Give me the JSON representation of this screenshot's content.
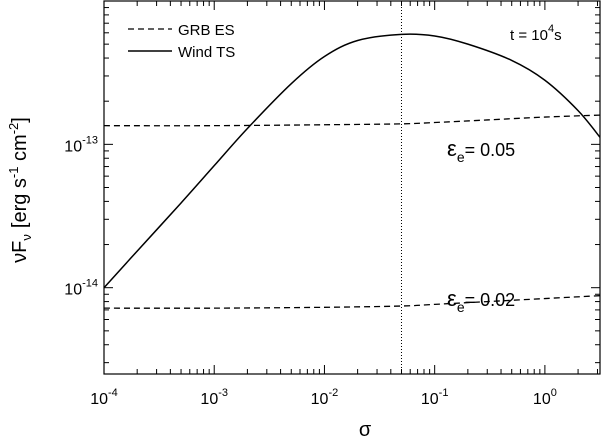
{
  "chart_data": {
    "type": "line",
    "scale": {
      "x": "log",
      "y": "log"
    },
    "xlabel": "σ",
    "ylabel": {
      "main": "νF",
      "sub": "ν",
      "units": "[erg s",
      "units_exp1": "-1",
      "units_mid": " cm",
      "units_exp2": "-2",
      "units_end": "]"
    },
    "xlim": [
      0.0001,
      3.162
    ],
    "ylim": [
      2.5e-15,
      1e-12
    ],
    "x_ticks": [
      {
        "base": "10",
        "exp": "-4",
        "value": 0.0001
      },
      {
        "base": "10",
        "exp": "-3",
        "value": 0.001
      },
      {
        "base": "10",
        "exp": "-2",
        "value": 0.01
      },
      {
        "base": "10",
        "exp": "-1",
        "value": 0.1
      },
      {
        "base": "10",
        "exp": "0",
        "value": 1
      }
    ],
    "y_ticks": [
      {
        "base": "10",
        "exp": "-14",
        "value": 1e-14
      },
      {
        "base": "10",
        "exp": "-13",
        "value": 1e-13
      }
    ],
    "vline": {
      "x": 0.05,
      "style": "dotted"
    },
    "legend": {
      "placement": "top-left",
      "entries": [
        {
          "label": "GRB ES",
          "style": "dashed"
        },
        {
          "label": "Wind TS",
          "style": "solid"
        }
      ]
    },
    "annotations": {
      "time": {
        "text": "t = 10",
        "exp": "4",
        "suffix": "s"
      },
      "eps_high": {
        "sym": "ε",
        "sub": "e",
        "text": "= 0.05"
      },
      "eps_low": {
        "sym": "ε",
        "sub": "e",
        "text": "= 0.02"
      }
    },
    "series": [
      {
        "name": "Wind TS",
        "style": "solid",
        "x": [
          0.0001,
          0.0002,
          0.0005,
          0.001,
          0.002,
          0.005,
          0.01,
          0.02,
          0.05,
          0.1,
          0.2,
          0.5,
          1,
          2,
          3.162
        ],
        "y": [
          1e-14,
          1.8e-14,
          3.9e-14,
          7.1e-14,
          1.29e-13,
          2.65e-13,
          4.1e-13,
          5.3e-13,
          5.85e-13,
          5.7e-13,
          5e-13,
          3.85e-13,
          2.8e-13,
          1.72e-13,
          1.12e-13
        ]
      },
      {
        "name": "GRB ES (ε_e = 0.05)",
        "style": "dashed",
        "x": [
          0.0001,
          0.001,
          0.01,
          0.05,
          0.1,
          0.3,
          1,
          3.162
        ],
        "y": [
          1.35e-13,
          1.35e-13,
          1.37e-13,
          1.39e-13,
          1.42e-13,
          1.48e-13,
          1.55e-13,
          1.6e-13
        ]
      },
      {
        "name": "GRB ES (ε_e = 0.02)",
        "style": "dashed",
        "x": [
          0.0001,
          0.001,
          0.01,
          0.05,
          0.1,
          0.3,
          1,
          3.162
        ],
        "y": [
          7.2e-15,
          7.2e-15,
          7.3e-15,
          7.45e-15,
          7.65e-15,
          8e-15,
          8.4e-15,
          8.8e-15
        ]
      }
    ]
  }
}
